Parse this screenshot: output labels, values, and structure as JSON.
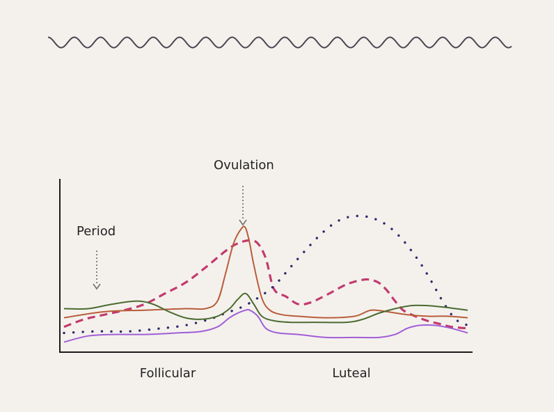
{
  "chart_data": {
    "type": "line",
    "title": "",
    "xlabel": "",
    "ylabel": "",
    "phase_labels": [
      "Follicular",
      "Luteal"
    ],
    "annotations": [
      {
        "text": "Period",
        "x": 5
      },
      {
        "text": "Ovulation",
        "x": 46
      }
    ],
    "xlim": [
      0,
      100
    ],
    "ylim": [
      0,
      100
    ],
    "grid": false,
    "series": [
      {
        "color": "#c23a6e",
        "style": "dashed",
        "x": [
          0,
          5,
          10,
          15,
          20,
          25,
          30,
          35,
          40,
          43,
          46,
          48,
          50,
          52,
          55,
          58,
          61,
          65,
          70,
          74,
          76,
          78,
          80,
          82,
          84,
          87,
          90,
          93,
          96,
          100
        ],
        "y": [
          13,
          18,
          21,
          24,
          28,
          35,
          42,
          52,
          63,
          68,
          70,
          68,
          58,
          38,
          33,
          28,
          29,
          34,
          41,
          44,
          44,
          42,
          37,
          30,
          24,
          20,
          17,
          15,
          13,
          12
        ]
      },
      {
        "color": "#2e2a6b",
        "style": "dotted",
        "x": [
          0,
          8,
          16,
          24,
          30,
          36,
          40,
          44,
          48,
          52,
          56,
          60,
          64,
          68,
          72,
          76,
          80,
          84,
          88,
          91,
          94,
          97,
          100
        ],
        "y": [
          9,
          10,
          10,
          12,
          14,
          18,
          22,
          26,
          32,
          40,
          52,
          64,
          75,
          83,
          86,
          85,
          80,
          70,
          56,
          43,
          29,
          18,
          14
        ]
      },
      {
        "color": "#b85c38",
        "style": "solid",
        "x": [
          0,
          10,
          20,
          30,
          35,
          38,
          40,
          42,
          44,
          45,
          46,
          47,
          49,
          51,
          54,
          58,
          65,
          72,
          76,
          80,
          85,
          90,
          95,
          100
        ],
        "y": [
          19,
          23,
          24,
          25,
          25,
          30,
          48,
          68,
          78,
          78,
          68,
          54,
          32,
          24,
          21,
          20,
          19,
          20,
          24,
          23,
          21,
          20,
          20,
          19
        ]
      },
      {
        "color": "#4a6b2f",
        "style": "solid",
        "x": [
          0,
          6,
          12,
          18,
          22,
          26,
          30,
          34,
          38,
          41,
          43,
          45,
          47,
          49,
          52,
          56,
          62,
          70,
          74,
          78,
          82,
          86,
          90,
          94,
          97,
          100
        ],
        "y": [
          25,
          25,
          28,
          30,
          28,
          23,
          19,
          18,
          20,
          25,
          31,
          35,
          28,
          20,
          17,
          16,
          16,
          16,
          18,
          22,
          25,
          27,
          27,
          26,
          25,
          24
        ]
      },
      {
        "color": "#a05ed6",
        "style": "solid",
        "x": [
          0,
          6,
          12,
          20,
          28,
          34,
          38,
          41,
          43,
          45,
          46,
          48,
          50,
          53,
          58,
          65,
          72,
          78,
          82,
          85,
          88,
          92,
          96,
          100
        ],
        "y": [
          3,
          7,
          8,
          8,
          9,
          10,
          13,
          19,
          22,
          24,
          24,
          20,
          12,
          9,
          8,
          6,
          6,
          6,
          8,
          12,
          14,
          14,
          12,
          9
        ]
      }
    ]
  }
}
